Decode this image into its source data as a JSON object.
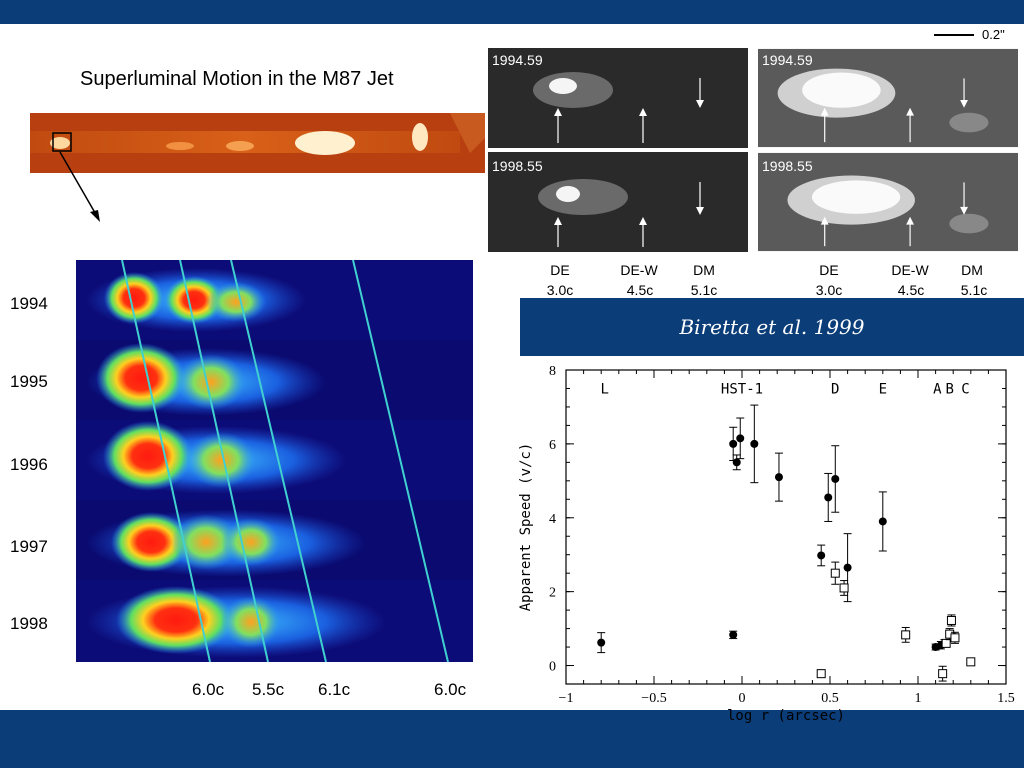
{
  "slide": {
    "title": "Superluminal Motion in the M87 Jet",
    "citation": "Biretta et al. 1999",
    "scale_bar": "0.2\"",
    "colors": {
      "banner": "#0b3d78",
      "heat_background": "#0a0a6e",
      "jet_orange": "#e07020"
    }
  },
  "heatmap": {
    "years": [
      "1994",
      "1995",
      "1996",
      "1997",
      "1998"
    ],
    "speeds": [
      "6.0c",
      "5.5c",
      "6.1c",
      "6.0c"
    ]
  },
  "hst_panels": {
    "epochs": [
      "1994.59",
      "1998.55",
      "1994.59",
      "1998.55"
    ],
    "knots_left": [
      {
        "name": "DE",
        "speed": "3.0c"
      },
      {
        "name": "DE-W",
        "speed": "4.5c"
      },
      {
        "name": "DM",
        "speed": "5.1c"
      }
    ],
    "knots_right": [
      {
        "name": "DE",
        "speed": "3.0c"
      },
      {
        "name": "DE-W",
        "speed": "4.5c"
      },
      {
        "name": "DM",
        "speed": "5.1c"
      }
    ]
  },
  "chart_data": {
    "type": "scatter",
    "title": "",
    "xlabel": "log r (arcsec)",
    "ylabel": "Apparent Speed (v/c)",
    "xlim": [
      -1,
      1.5
    ],
    "ylim": [
      -0.5,
      8
    ],
    "xticks": [
      -1,
      -0.5,
      0,
      0.5,
      1,
      1.5
    ],
    "xtick_labels": [
      "−1",
      "−0.5",
      "0",
      "0.5",
      "1",
      "1.5"
    ],
    "yticks": [
      0,
      2,
      4,
      6,
      8
    ],
    "ytick_labels": [
      "0",
      "2",
      "4",
      "6",
      "8"
    ],
    "annotations": [
      {
        "text": "L",
        "x": -0.78,
        "y": 7.5
      },
      {
        "text": "HST-1",
        "x": 0.0,
        "y": 7.5
      },
      {
        "text": "D",
        "x": 0.53,
        "y": 7.5
      },
      {
        "text": "E",
        "x": 0.8,
        "y": 7.5
      },
      {
        "text": "A",
        "x": 1.11,
        "y": 7.5
      },
      {
        "text": "B",
        "x": 1.18,
        "y": 7.5
      },
      {
        "text": "C",
        "x": 1.27,
        "y": 7.5
      }
    ],
    "series": [
      {
        "marker": "filled-circle",
        "points": [
          {
            "x": -0.8,
            "y": 0.62,
            "err": 0.27
          },
          {
            "x": -0.05,
            "y": 6.0,
            "err": 0.45
          },
          {
            "x": -0.03,
            "y": 5.5,
            "err": 0.2
          },
          {
            "x": -0.01,
            "y": 6.15,
            "err": 0.55
          },
          {
            "x": 0.07,
            "y": 6.0,
            "err": 1.05
          },
          {
            "x": 0.21,
            "y": 5.1,
            "err": 0.65
          },
          {
            "x": -0.05,
            "y": 0.83,
            "err": 0.1
          },
          {
            "x": 0.45,
            "y": 2.98,
            "err": 0.28
          },
          {
            "x": 0.49,
            "y": 4.55,
            "err": 0.65
          },
          {
            "x": 0.53,
            "y": 5.05,
            "err": 0.9
          },
          {
            "x": 0.6,
            "y": 2.65,
            "err": 0.92
          },
          {
            "x": 0.8,
            "y": 3.9,
            "err": 0.8
          },
          {
            "x": 1.1,
            "y": 0.5,
            "err": 0.08
          },
          {
            "x": 1.13,
            "y": 0.55,
            "err": 0.1
          },
          {
            "x": 1.15,
            "y": 0.6,
            "err": 0.1
          }
        ]
      },
      {
        "marker": "open-square",
        "points": [
          {
            "x": 0.45,
            "y": -0.22,
            "err": 0.1
          },
          {
            "x": 0.53,
            "y": 2.5,
            "err": 0.3
          },
          {
            "x": 0.58,
            "y": 2.1,
            "err": 0.2
          },
          {
            "x": 0.93,
            "y": 0.83,
            "err": 0.2
          },
          {
            "x": 1.14,
            "y": -0.22,
            "err": 0.2
          },
          {
            "x": 1.16,
            "y": 0.6,
            "err": 0.1
          },
          {
            "x": 1.18,
            "y": 0.85,
            "err": 0.15
          },
          {
            "x": 1.19,
            "y": 1.22,
            "err": 0.15
          },
          {
            "x": 1.21,
            "y": 0.75,
            "err": 0.15
          },
          {
            "x": 1.3,
            "y": 0.1,
            "err": 0.05
          }
        ]
      }
    ]
  }
}
